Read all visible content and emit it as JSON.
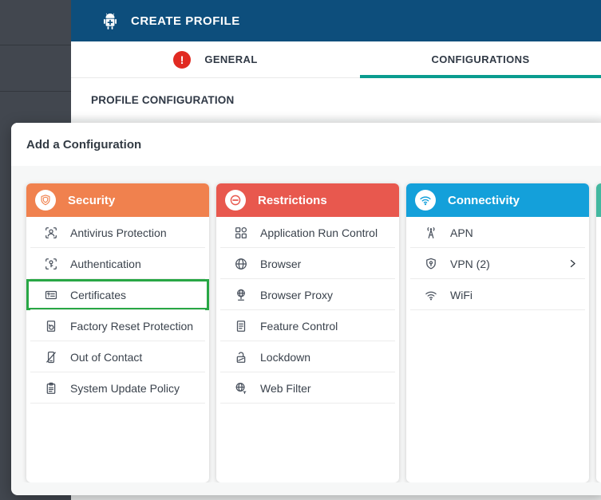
{
  "app": {
    "header": {
      "title": "CREATE PROFILE",
      "icon": "android-robot-icon"
    }
  },
  "tabs": [
    {
      "label": "GENERAL",
      "has_error": true,
      "error_icon": "error-exclamation-icon",
      "active": false
    },
    {
      "label": "CONFIGURATIONS",
      "has_error": false,
      "active": true
    }
  ],
  "page": {
    "section_title": "PROFILE CONFIGURATION"
  },
  "modal": {
    "title": "Add a Configuration",
    "highlight_color": "#28a745",
    "cards": [
      {
        "name": "Security",
        "color": "#f0814e",
        "icon": "shield-icon",
        "partial": false,
        "items": [
          {
            "label": "Antivirus Protection",
            "icon": "antivirus-scan-icon"
          },
          {
            "label": "Authentication",
            "icon": "authentication-icon"
          },
          {
            "label": "Certificates",
            "icon": "certificate-card-icon",
            "highlighted": true
          },
          {
            "label": "Factory Reset Protection",
            "icon": "factory-reset-icon"
          },
          {
            "label": "Out of Contact",
            "icon": "out-of-contact-icon"
          },
          {
            "label": "System Update Policy",
            "icon": "system-update-icon"
          }
        ]
      },
      {
        "name": "Restrictions",
        "color": "#e8584e",
        "icon": "no-entry-icon",
        "partial": false,
        "items": [
          {
            "label": "Application Run Control",
            "icon": "app-grid-icon"
          },
          {
            "label": "Browser",
            "icon": "globe-icon"
          },
          {
            "label": "Browser Proxy",
            "icon": "globe-proxy-icon"
          },
          {
            "label": "Feature Control",
            "icon": "feature-doc-icon"
          },
          {
            "label": "Lockdown",
            "icon": "unlock-icon"
          },
          {
            "label": "Web Filter",
            "icon": "globe-filter-icon"
          }
        ]
      },
      {
        "name": "Connectivity",
        "color": "#14a0da",
        "icon": "wifi-icon",
        "partial": false,
        "items": [
          {
            "label": "APN",
            "icon": "antenna-icon"
          },
          {
            "label": "VPN (2)",
            "icon": "vpn-shield-icon",
            "has_chevron": true,
            "chevron_icon": "chevron-right-icon"
          },
          {
            "label": "WiFi",
            "icon": "wifi-small-icon"
          }
        ]
      },
      {
        "name": "",
        "color": "#43b8a0",
        "icon": "",
        "partial": true,
        "items": []
      }
    ]
  },
  "colors": {
    "top_header_blue": "#0d4e7c",
    "active_tab_teal": "#0a9c8f",
    "error_red": "#e12a21",
    "sidebar_dark": "#42474f",
    "highlight_green": "#28a745"
  }
}
